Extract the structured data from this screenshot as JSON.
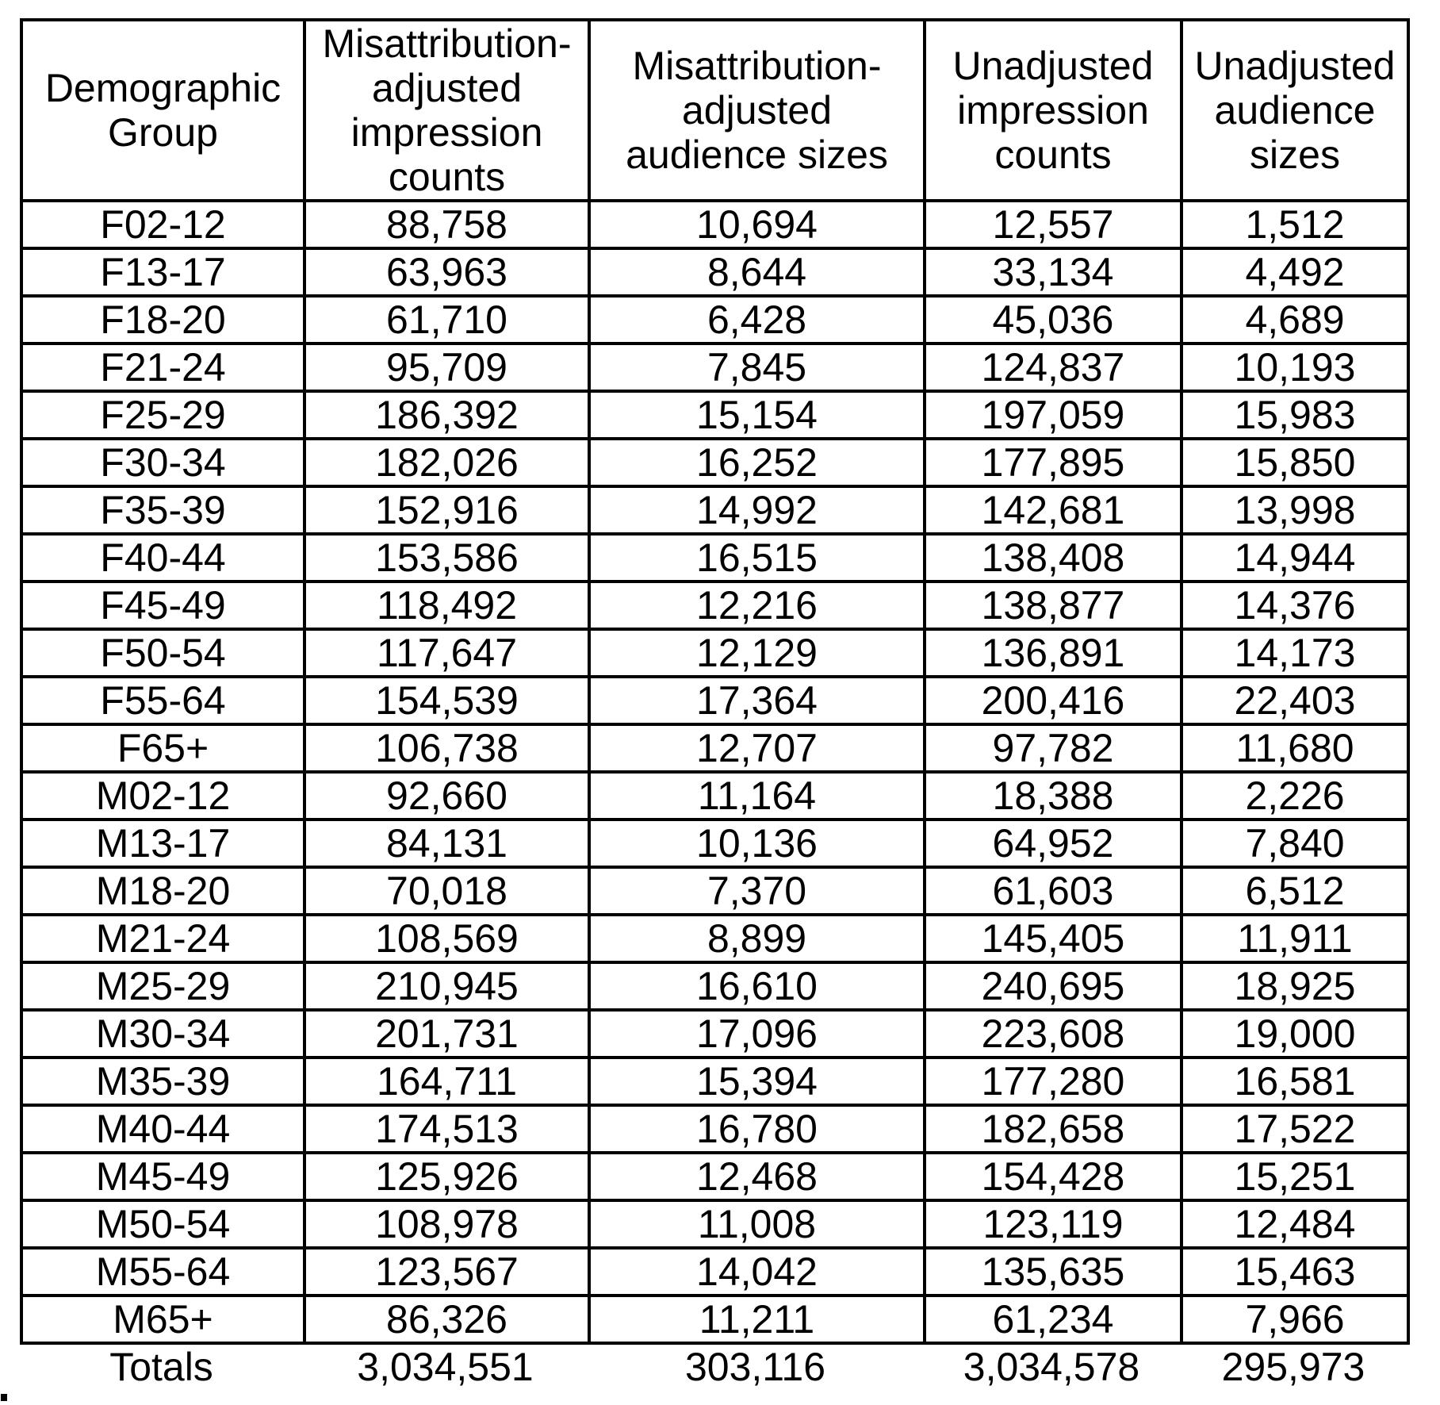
{
  "table": {
    "headers": [
      "Demographic\nGroup",
      "Misattribution-\nadjusted\nimpression\ncounts",
      "Misattribution-\nadjusted\naudience sizes",
      "Unadjusted\nimpression\ncounts",
      "Unadjusted\naudience\nsizes"
    ],
    "rows": [
      [
        "F02-12",
        "88,758",
        "10,694",
        "12,557",
        "1,512"
      ],
      [
        "F13-17",
        "63,963",
        "8,644",
        "33,134",
        "4,492"
      ],
      [
        "F18-20",
        "61,710",
        "6,428",
        "45,036",
        "4,689"
      ],
      [
        "F21-24",
        "95,709",
        "7,845",
        "124,837",
        "10,193"
      ],
      [
        "F25-29",
        "186,392",
        "15,154",
        "197,059",
        "15,983"
      ],
      [
        "F30-34",
        "182,026",
        "16,252",
        "177,895",
        "15,850"
      ],
      [
        "F35-39",
        "152,916",
        "14,992",
        "142,681",
        "13,998"
      ],
      [
        "F40-44",
        "153,586",
        "16,515",
        "138,408",
        "14,944"
      ],
      [
        "F45-49",
        "118,492",
        "12,216",
        "138,877",
        "14,376"
      ],
      [
        "F50-54",
        "117,647",
        "12,129",
        "136,891",
        "14,173"
      ],
      [
        "F55-64",
        "154,539",
        "17,364",
        "200,416",
        "22,403"
      ],
      [
        "F65+",
        "106,738",
        "12,707",
        "97,782",
        "11,680"
      ],
      [
        "M02-12",
        "92,660",
        "11,164",
        "18,388",
        "2,226"
      ],
      [
        "M13-17",
        "84,131",
        "10,136",
        "64,952",
        "7,840"
      ],
      [
        "M18-20",
        "70,018",
        "7,370",
        "61,603",
        "6,512"
      ],
      [
        "M21-24",
        "108,569",
        "8,899",
        "145,405",
        "11,911"
      ],
      [
        "M25-29",
        "210,945",
        "16,610",
        "240,695",
        "18,925"
      ],
      [
        "M30-34",
        "201,731",
        "17,096",
        "223,608",
        "19,000"
      ],
      [
        "M35-39",
        "164,711",
        "15,394",
        "177,280",
        "16,581"
      ],
      [
        "M40-44",
        "174,513",
        "16,780",
        "182,658",
        "17,522"
      ],
      [
        "M45-49",
        "125,926",
        "12,468",
        "154,428",
        "15,251"
      ],
      [
        "M50-54",
        "108,978",
        "11,008",
        "123,119",
        "12,484"
      ],
      [
        "M55-64",
        "123,567",
        "14,042",
        "135,635",
        "15,463"
      ],
      [
        "M65+",
        "86,326",
        "11,211",
        "61,234",
        "7,966"
      ]
    ],
    "totals": [
      "Totals",
      "3,034,551",
      "303,116",
      "3,034,578",
      "295,973"
    ]
  },
  "chart_data": {
    "type": "table",
    "columns": [
      "Demographic Group",
      "Misattribution-adjusted impression counts",
      "Misattribution-adjusted audience sizes",
      "Unadjusted impression counts",
      "Unadjusted audience sizes"
    ],
    "rows": [
      [
        "F02-12",
        88758,
        10694,
        12557,
        1512
      ],
      [
        "F13-17",
        63963,
        8644,
        33134,
        4492
      ],
      [
        "F18-20",
        61710,
        6428,
        45036,
        4689
      ],
      [
        "F21-24",
        95709,
        7845,
        124837,
        10193
      ],
      [
        "F25-29",
        186392,
        15154,
        197059,
        15983
      ],
      [
        "F30-34",
        182026,
        16252,
        177895,
        15850
      ],
      [
        "F35-39",
        152916,
        14992,
        142681,
        13998
      ],
      [
        "F40-44",
        153586,
        16515,
        138408,
        14944
      ],
      [
        "F45-49",
        118492,
        12216,
        138877,
        14376
      ],
      [
        "F50-54",
        117647,
        12129,
        136891,
        14173
      ],
      [
        "F55-64",
        154539,
        17364,
        200416,
        22403
      ],
      [
        "F65+",
        106738,
        12707,
        97782,
        11680
      ],
      [
        "M02-12",
        92660,
        11164,
        18388,
        2226
      ],
      [
        "M13-17",
        84131,
        10136,
        64952,
        7840
      ],
      [
        "M18-20",
        70018,
        7370,
        61603,
        6512
      ],
      [
        "M21-24",
        108569,
        8899,
        145405,
        11911
      ],
      [
        "M25-29",
        210945,
        16610,
        240695,
        18925
      ],
      [
        "M30-34",
        201731,
        17096,
        223608,
        19000
      ],
      [
        "M35-39",
        164711,
        15394,
        177280,
        16581
      ],
      [
        "M40-44",
        174513,
        16780,
        182658,
        17522
      ],
      [
        "M45-49",
        125926,
        12468,
        154428,
        15251
      ],
      [
        "M50-54",
        108978,
        11008,
        123119,
        12484
      ],
      [
        "M55-64",
        123567,
        14042,
        135635,
        15463
      ],
      [
        "M65+",
        86326,
        11211,
        61234,
        7966
      ]
    ],
    "totals": [
      "Totals",
      3034551,
      303116,
      3034578,
      295973
    ]
  }
}
